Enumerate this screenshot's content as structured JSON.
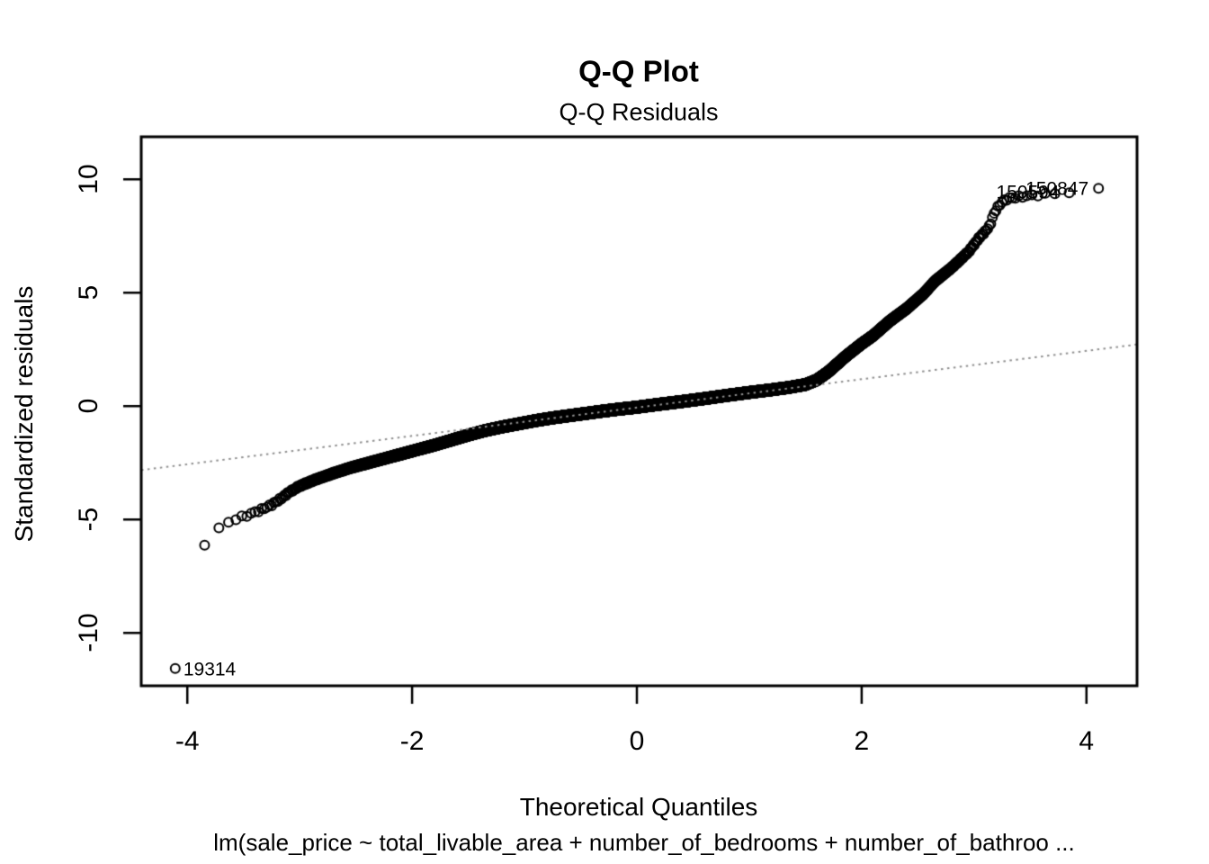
{
  "chart_data": {
    "type": "scatter",
    "title": "Q-Q Plot",
    "subtitle": "Q-Q Residuals",
    "xlabel": "Theoretical Quantiles",
    "ylabel": "Standardized residuals",
    "caption": "lm(sale_price ~ total_livable_area + number_of_bedrooms + number_of_bathroo ...",
    "x_ticks": [
      -4,
      -2,
      0,
      2,
      4
    ],
    "y_ticks": [
      -10,
      -5,
      0,
      5,
      10
    ],
    "xlim": [
      -4.41,
      4.45
    ],
    "ylim": [
      -12.33,
      11.87
    ],
    "grid": false,
    "legend": false,
    "point_style": {
      "shape": "open-circle",
      "radius_px": 5,
      "stroke": "#000000",
      "stroke_width": 2
    },
    "reference_line": {
      "slope": 0.625,
      "intercept": -0.065,
      "style": "dotted",
      "color": "#909090"
    },
    "n_points_rendered": 25000,
    "curve_anchors": [
      [
        -4.107,
        -11.6
      ],
      [
        -3.95,
        -7.0
      ],
      [
        -3.85,
        -6.1
      ],
      [
        -3.73,
        -5.45
      ],
      [
        -3.65,
        -5.15
      ],
      [
        -3.58,
        -5.0
      ],
      [
        -3.5,
        -4.87
      ],
      [
        -3.42,
        -4.72
      ],
      [
        -3.34,
        -4.56
      ],
      [
        -3.26,
        -4.38
      ],
      [
        -3.18,
        -4.12
      ],
      [
        -3.1,
        -3.82
      ],
      [
        -3.0,
        -3.52
      ],
      [
        -2.85,
        -3.22
      ],
      [
        -2.7,
        -2.96
      ],
      [
        -2.55,
        -2.72
      ],
      [
        -2.4,
        -2.52
      ],
      [
        -2.25,
        -2.32
      ],
      [
        -2.1,
        -2.12
      ],
      [
        -1.95,
        -1.92
      ],
      [
        -1.8,
        -1.72
      ],
      [
        -1.65,
        -1.5
      ],
      [
        -1.5,
        -1.28
      ],
      [
        -1.35,
        -1.08
      ],
      [
        -1.2,
        -0.92
      ],
      [
        -1.05,
        -0.78
      ],
      [
        -0.9,
        -0.64
      ],
      [
        -0.75,
        -0.52
      ],
      [
        -0.6,
        -0.42
      ],
      [
        -0.45,
        -0.32
      ],
      [
        -0.3,
        -0.22
      ],
      [
        -0.15,
        -0.13
      ],
      [
        0,
        -0.05
      ],
      [
        0.2,
        0.08
      ],
      [
        0.4,
        0.2
      ],
      [
        0.6,
        0.33
      ],
      [
        0.8,
        0.47
      ],
      [
        1.0,
        0.6
      ],
      [
        1.2,
        0.72
      ],
      [
        1.35,
        0.82
      ],
      [
        1.5,
        0.95
      ],
      [
        1.6,
        1.15
      ],
      [
        1.7,
        1.5
      ],
      [
        1.86,
        2.2
      ],
      [
        2.0,
        2.75
      ],
      [
        2.1,
        3.1
      ],
      [
        2.25,
        3.75
      ],
      [
        2.4,
        4.3
      ],
      [
        2.55,
        4.95
      ],
      [
        2.65,
        5.5
      ],
      [
        2.8,
        6.1
      ],
      [
        2.95,
        6.8
      ],
      [
        3.05,
        7.45
      ],
      [
        3.1,
        7.7
      ],
      [
        3.14,
        7.95
      ],
      [
        3.17,
        8.4
      ],
      [
        3.2,
        8.7
      ],
      [
        3.25,
        9.0
      ],
      [
        3.3,
        9.15
      ],
      [
        3.4,
        9.22
      ],
      [
        3.5,
        9.28
      ],
      [
        3.6,
        9.32
      ],
      [
        3.73,
        9.38
      ],
      [
        3.85,
        9.42
      ],
      [
        4.107,
        9.55
      ]
    ],
    "labeled_points": [
      {
        "label": "19314",
        "x": -4.107,
        "y": -11.6,
        "side": "right"
      },
      {
        "label": "150594",
        "x": 3.846,
        "y": 9.4,
        "side": "left"
      },
      {
        "label": "150847",
        "x": 4.107,
        "y": 9.55,
        "side": "left"
      }
    ]
  }
}
